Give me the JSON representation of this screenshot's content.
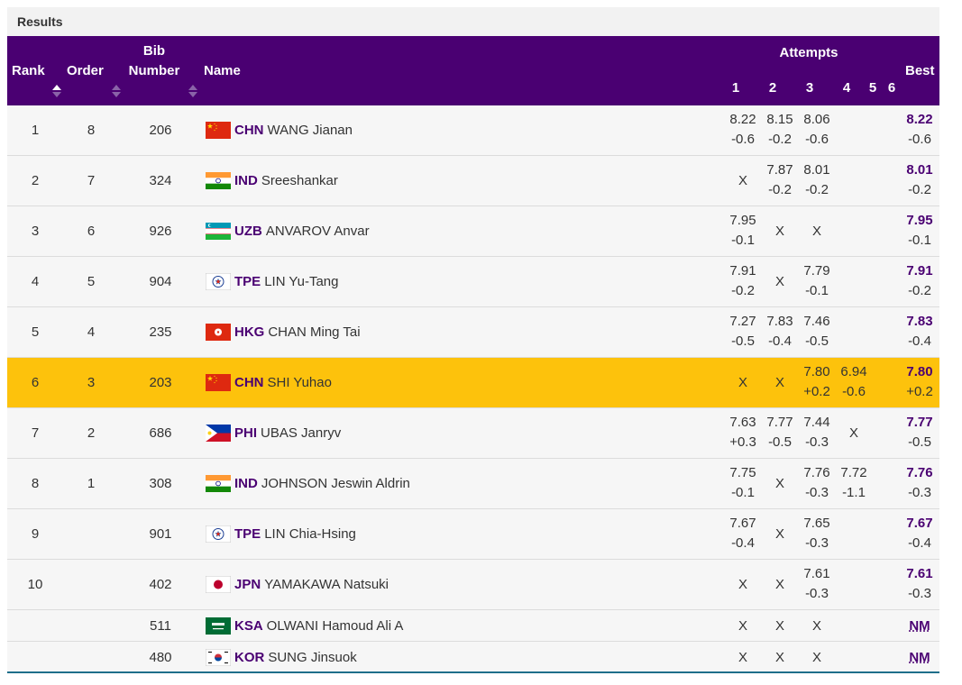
{
  "panel": {
    "title": "Results"
  },
  "header": {
    "rank": "Rank",
    "order": "Order",
    "bib_line1": "Bib",
    "bib_line2": "Number",
    "name": "Name",
    "attempts": "Attempts",
    "attempt_nums": [
      "1",
      "2",
      "3",
      "4",
      "5",
      "6"
    ],
    "best": "Best"
  },
  "rows": [
    {
      "rank": "1",
      "order": "8",
      "bib": "206",
      "noc": "CHN",
      "name": "WANG Jianan",
      "flag": "chn-flag-icon",
      "attempts": [
        {
          "mark": "8.22",
          "wind": "-0.6"
        },
        {
          "mark": "8.15",
          "wind": "-0.2"
        },
        {
          "mark": "8.06",
          "wind": "-0.6"
        },
        {
          "mark": "",
          "wind": ""
        }
      ],
      "best": {
        "mark": "8.22",
        "wind": "-0.6"
      }
    },
    {
      "rank": "2",
      "order": "7",
      "bib": "324",
      "noc": "IND",
      "name": "Sreeshankar",
      "flag": "ind-flag-icon",
      "attempts": [
        {
          "mark": "X",
          "wind": ""
        },
        {
          "mark": "7.87",
          "wind": "-0.2"
        },
        {
          "mark": "8.01",
          "wind": "-0.2"
        },
        {
          "mark": "",
          "wind": ""
        }
      ],
      "best": {
        "mark": "8.01",
        "wind": "-0.2"
      }
    },
    {
      "rank": "3",
      "order": "6",
      "bib": "926",
      "noc": "UZB",
      "name": "ANVAROV Anvar",
      "flag": "uzb-flag-icon",
      "attempts": [
        {
          "mark": "7.95",
          "wind": "-0.1"
        },
        {
          "mark": "X",
          "wind": ""
        },
        {
          "mark": "X",
          "wind": ""
        },
        {
          "mark": "",
          "wind": ""
        }
      ],
      "best": {
        "mark": "7.95",
        "wind": "-0.1"
      }
    },
    {
      "rank": "4",
      "order": "5",
      "bib": "904",
      "noc": "TPE",
      "name": "LIN Yu-Tang",
      "flag": "tpe-flag-icon",
      "attempts": [
        {
          "mark": "7.91",
          "wind": "-0.2"
        },
        {
          "mark": "X",
          "wind": ""
        },
        {
          "mark": "7.79",
          "wind": "-0.1"
        },
        {
          "mark": "",
          "wind": ""
        }
      ],
      "best": {
        "mark": "7.91",
        "wind": "-0.2"
      }
    },
    {
      "rank": "5",
      "order": "4",
      "bib": "235",
      "noc": "HKG",
      "name": "CHAN Ming Tai",
      "flag": "hkg-flag-icon",
      "attempts": [
        {
          "mark": "7.27",
          "wind": "-0.5"
        },
        {
          "mark": "7.83",
          "wind": "-0.4"
        },
        {
          "mark": "7.46",
          "wind": "-0.5"
        },
        {
          "mark": "",
          "wind": ""
        }
      ],
      "best": {
        "mark": "7.83",
        "wind": "-0.4"
      }
    },
    {
      "rank": "6",
      "order": "3",
      "bib": "203",
      "noc": "CHN",
      "name": "SHI Yuhao",
      "flag": "chn-flag-icon",
      "highlight": true,
      "attempts": [
        {
          "mark": "X",
          "wind": ""
        },
        {
          "mark": "X",
          "wind": ""
        },
        {
          "mark": "7.80",
          "wind": "+0.2"
        },
        {
          "mark": "6.94",
          "wind": "-0.6"
        }
      ],
      "best": {
        "mark": "7.80",
        "wind": "+0.2"
      }
    },
    {
      "rank": "7",
      "order": "2",
      "bib": "686",
      "noc": "PHI",
      "name": "UBAS Janryv",
      "flag": "phi-flag-icon",
      "attempts": [
        {
          "mark": "7.63",
          "wind": "+0.3"
        },
        {
          "mark": "7.77",
          "wind": "-0.5"
        },
        {
          "mark": "7.44",
          "wind": "-0.3"
        },
        {
          "mark": "X",
          "wind": ""
        }
      ],
      "best": {
        "mark": "7.77",
        "wind": "-0.5"
      }
    },
    {
      "rank": "8",
      "order": "1",
      "bib": "308",
      "noc": "IND",
      "name": "JOHNSON Jeswin Aldrin",
      "flag": "ind-flag-icon",
      "attempts": [
        {
          "mark": "7.75",
          "wind": "-0.1"
        },
        {
          "mark": "X",
          "wind": ""
        },
        {
          "mark": "7.76",
          "wind": "-0.3"
        },
        {
          "mark": "7.72",
          "wind": "-1.1"
        }
      ],
      "best": {
        "mark": "7.76",
        "wind": "-0.3"
      }
    },
    {
      "rank": "9",
      "order": "",
      "bib": "901",
      "noc": "TPE",
      "name": "LIN Chia-Hsing",
      "flag": "tpe-flag-icon",
      "attempts": [
        {
          "mark": "7.67",
          "wind": "-0.4"
        },
        {
          "mark": "X",
          "wind": ""
        },
        {
          "mark": "7.65",
          "wind": "-0.3"
        },
        {
          "mark": "",
          "wind": ""
        }
      ],
      "best": {
        "mark": "7.67",
        "wind": "-0.4"
      }
    },
    {
      "rank": "10",
      "order": "",
      "bib": "402",
      "noc": "JPN",
      "name": "YAMAKAWA Natsuki",
      "flag": "jpn-flag-icon",
      "attempts": [
        {
          "mark": "X",
          "wind": ""
        },
        {
          "mark": "X",
          "wind": ""
        },
        {
          "mark": "7.61",
          "wind": "-0.3"
        },
        {
          "mark": "",
          "wind": ""
        }
      ],
      "best": {
        "mark": "7.61",
        "wind": "-0.3"
      }
    },
    {
      "rank": "",
      "order": "",
      "bib": "511",
      "noc": "KSA",
      "name": "OLWANI Hamoud Ali A",
      "flag": "ksa-flag-icon",
      "short": true,
      "attempts": [
        {
          "mark": "X",
          "wind": ""
        },
        {
          "mark": "X",
          "wind": ""
        },
        {
          "mark": "X",
          "wind": ""
        },
        {
          "mark": "",
          "wind": ""
        }
      ],
      "best": {
        "mark": "NM",
        "wind": "",
        "nm": true
      }
    },
    {
      "rank": "",
      "order": "",
      "bib": "480",
      "noc": "KOR",
      "name": "SUNG Jinsuok",
      "flag": "kor-flag-icon",
      "short": true,
      "attempts": [
        {
          "mark": "X",
          "wind": ""
        },
        {
          "mark": "X",
          "wind": ""
        },
        {
          "mark": "X",
          "wind": ""
        },
        {
          "mark": "",
          "wind": ""
        }
      ],
      "best": {
        "mark": "NM",
        "wind": "",
        "nm": true
      }
    }
  ],
  "colors": {
    "header_bg": "#4a0072",
    "highlight_row": "#fdc20c",
    "noc_text": "#4a0072"
  }
}
